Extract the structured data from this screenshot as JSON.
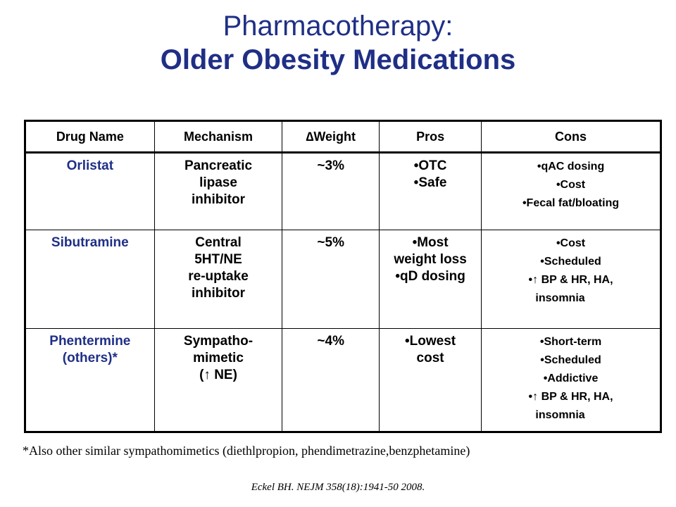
{
  "slide": {
    "title_line1": "Pharmacotherapy:",
    "title_line2": "Older Obesity Medications",
    "footnote": "*Also other similar sympathomimetics (diethlpropion, phendimetrazine,benzphetamine)",
    "citation": "Eckel BH. NEJM 358(18):1941-50 2008."
  },
  "table": {
    "headers": [
      "Drug Name",
      "Mechanism",
      "∆Weight",
      "Pros",
      "Cons"
    ],
    "rows": [
      {
        "drug": [
          "Orlistat"
        ],
        "mechanism": [
          "Pancreatic",
          "lipase",
          "inhibitor"
        ],
        "weight": "~3%",
        "pros": [
          "•OTC",
          "•Safe"
        ],
        "cons": [
          "•qAC dosing",
          "•Cost",
          "•Fecal fat/bloating"
        ]
      },
      {
        "drug": [
          "Sibutramine"
        ],
        "mechanism": [
          "Central",
          "5HT/NE",
          "re-uptake",
          "inhibitor"
        ],
        "weight": "~5%",
        "pros": [
          "•Most",
          "weight loss",
          "•qD dosing"
        ],
        "cons": [
          "•Cost",
          "•Scheduled",
          "•↑ BP & HR, HA,",
          "insomnia"
        ]
      },
      {
        "drug": [
          "Phentermine",
          "(others)*"
        ],
        "mechanism": [
          "Sympatho-",
          "mimetic",
          "(↑ NE)"
        ],
        "weight": "~4%",
        "pros": [
          "•Lowest",
          "cost"
        ],
        "cons": [
          "•Short-term",
          "•Scheduled",
          "•Addictive",
          "•↑ BP & HR, HA,",
          "insomnia"
        ]
      }
    ]
  },
  "colors": {
    "title": "#1f2f86",
    "drug_name": "#1f2f86",
    "text": "#000000"
  }
}
